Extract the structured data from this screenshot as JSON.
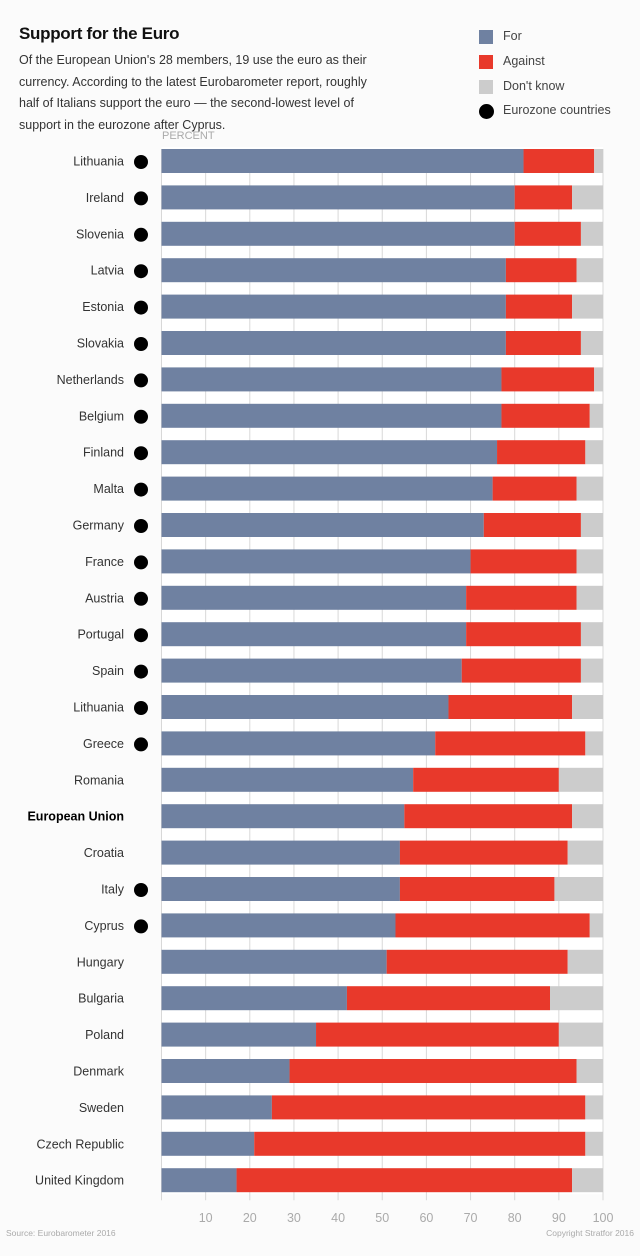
{
  "chart_data": {
    "type": "bar",
    "orientation": "horizontal",
    "stacked": true,
    "title": "Support for the Euro",
    "subtitle": "Of the European Union's 28 members, 19 use the euro as their currency. According to the latest Eurobarometer report, roughly half of Italians support the euro — the second-lowest level of support in the eurozone after Cyprus.",
    "xlabel": "PERCENT",
    "xlim": [
      0,
      100
    ],
    "xticks": [
      10,
      20,
      30,
      40,
      50,
      60,
      70,
      80,
      90,
      100
    ],
    "grid": true,
    "legend_position": "top-right",
    "categories": [
      "Lithuania",
      "Ireland",
      "Slovenia",
      "Latvia",
      "Estonia",
      "Slovakia",
      "Netherlands",
      "Belgium",
      "Finland",
      "Malta",
      "Germany",
      "France",
      "Austria",
      "Portugal",
      "Spain",
      "Lithuania",
      "Greece",
      "Romania",
      "European Union",
      "Croatia",
      "Italy",
      "Cyprus",
      "Hungary",
      "Bulgaria",
      "Poland",
      "Denmark",
      "Sweden",
      "Czech Republic",
      "United Kingdom"
    ],
    "eurozone": [
      true,
      true,
      true,
      true,
      true,
      true,
      true,
      true,
      true,
      true,
      true,
      true,
      true,
      true,
      true,
      true,
      true,
      false,
      false,
      false,
      true,
      true,
      false,
      false,
      false,
      false,
      false,
      false,
      false
    ],
    "highlight": "European Union",
    "series": [
      {
        "name": "For",
        "color": "#6f81a1",
        "values": [
          82,
          80,
          80,
          78,
          78,
          78,
          77,
          77,
          76,
          75,
          73,
          70,
          69,
          69,
          68,
          65,
          62,
          57,
          55,
          54,
          54,
          53,
          51,
          42,
          35,
          29,
          25,
          21,
          17
        ]
      },
      {
        "name": "Against",
        "color": "#e8392b",
        "values": [
          16,
          13,
          15,
          16,
          15,
          17,
          21,
          20,
          20,
          19,
          22,
          24,
          25,
          26,
          27,
          28,
          34,
          33,
          38,
          38,
          35,
          44,
          41,
          46,
          55,
          65,
          71,
          75,
          76
        ]
      },
      {
        "name": "Don't know",
        "color": "#cccccc",
        "values": [
          2,
          7,
          5,
          6,
          7,
          5,
          2,
          3,
          4,
          6,
          5,
          6,
          6,
          5,
          5,
          7,
          4,
          10,
          7,
          8,
          11,
          3,
          8,
          12,
          10,
          6,
          4,
          4,
          7
        ]
      }
    ],
    "marker_legend": {
      "name": "Eurozone countries",
      "color": "#000000"
    }
  },
  "footer": {
    "source": "Source: Eurobarometer 2016",
    "copyright": "Copyright Stratfor 2016"
  }
}
